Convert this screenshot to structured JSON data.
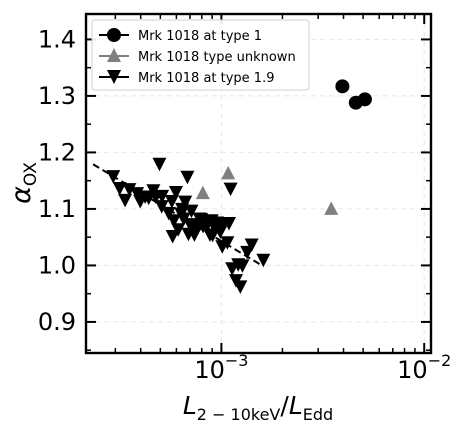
{
  "chart_data": {
    "type": "scatter",
    "xlabel": {
      "prefix": "L",
      "sub1": "2 − 10keV",
      "slash": "/",
      "l2": "L",
      "sub2": "Edd"
    },
    "ylabel": {
      "main": "α",
      "sub": "OX"
    },
    "xscale": "log",
    "xlim": [
      0.000215,
      0.0108
    ],
    "ylim": [
      0.845,
      1.445
    ],
    "x_ticks": [
      {
        "value": 0.001,
        "base": "10",
        "exp": "−3"
      },
      {
        "value": 0.01,
        "base": "10",
        "exp": "−2"
      }
    ],
    "y_ticks": [
      {
        "value": 0.9,
        "label": "0.9"
      },
      {
        "value": 1.0,
        "label": "1.0"
      },
      {
        "value": 1.1,
        "label": "1.1"
      },
      {
        "value": 1.2,
        "label": "1.2"
      },
      {
        "value": 1.3,
        "label": "1.3"
      },
      {
        "value": 1.4,
        "label": "1.4"
      }
    ],
    "grid": true,
    "legend_position": "top-left",
    "series": [
      {
        "name": "Mrk 1018 at type 1",
        "marker": "circle",
        "color": "#000000",
        "points": [
          [
            0.00395,
            1.317
          ],
          [
            0.0046,
            1.288
          ],
          [
            0.0051,
            1.294
          ]
        ]
      },
      {
        "name": "Mrk 1018 type unknown",
        "marker": "triangle-up",
        "color": "#808080",
        "points": [
          [
            0.00081,
            1.128
          ],
          [
            0.00108,
            1.163
          ],
          [
            0.00348,
            1.1
          ]
        ]
      },
      {
        "name": "Mrk 1018 at type 1.9",
        "marker": "triangle-down",
        "color": "#000000",
        "points": [
          [
            0.000293,
            1.158
          ],
          [
            0.000315,
            1.137
          ],
          [
            0.000335,
            1.116
          ],
          [
            0.000352,
            1.135
          ],
          [
            0.000384,
            1.128
          ],
          [
            0.000398,
            1.114
          ],
          [
            0.000421,
            1.122
          ],
          [
            0.000438,
            1.12
          ],
          [
            0.000462,
            1.133
          ],
          [
            0.000475,
            1.122
          ],
          [
            0.000495,
            1.18
          ],
          [
            0.00051,
            1.123
          ],
          [
            0.000508,
            1.105
          ],
          [
            0.00055,
            1.093
          ],
          [
            0.00057,
            1.114
          ],
          [
            0.000575,
            1.052
          ],
          [
            0.000583,
            1.08
          ],
          [
            0.000597,
            1.13
          ],
          [
            0.000612,
            1.064
          ],
          [
            0.000633,
            1.092
          ],
          [
            0.00064,
            1.1
          ],
          [
            0.000652,
            1.083
          ],
          [
            0.000663,
            1.113
          ],
          [
            0.00068,
            1.157
          ],
          [
            0.000688,
            1.056
          ],
          [
            0.0007,
            1.073
          ],
          [
            0.000712,
            1.097
          ],
          [
            0.000728,
            1.071
          ],
          [
            0.000736,
            1.055
          ],
          [
            0.000758,
            1.07
          ],
          [
            0.00078,
            1.083
          ],
          [
            0.000795,
            1.082
          ],
          [
            0.000812,
            1.07
          ],
          [
            0.000835,
            1.07
          ],
          [
            0.000863,
            1.076
          ],
          [
            0.000878,
            1.055
          ],
          [
            0.000896,
            1.08
          ],
          [
            0.000905,
            1.054
          ],
          [
            0.000925,
            1.068
          ],
          [
            0.000952,
            1.076
          ],
          [
            0.000973,
            1.074
          ],
          [
            0.000988,
            1.06
          ],
          [
            0.00101,
            1.034
          ],
          [
            0.00102,
            1.075
          ],
          [
            0.00107,
            1.041
          ],
          [
            0.00109,
            1.075
          ],
          [
            0.00111,
            1.136
          ],
          [
            0.00113,
            0.995
          ],
          [
            0.00118,
            0.974
          ],
          [
            0.00121,
            1.002
          ],
          [
            0.00124,
            0.963
          ],
          [
            0.00127,
            1.0
          ],
          [
            0.00134,
            1.024
          ],
          [
            0.00141,
            1.037
          ],
          [
            0.00161,
            1.01
          ]
        ]
      }
    ],
    "fit_line": {
      "style": "dashed",
      "color": "#000000",
      "points": [
        [
          0.000233,
          1.179
        ],
        [
          0.00155,
          1.002
        ]
      ]
    }
  }
}
